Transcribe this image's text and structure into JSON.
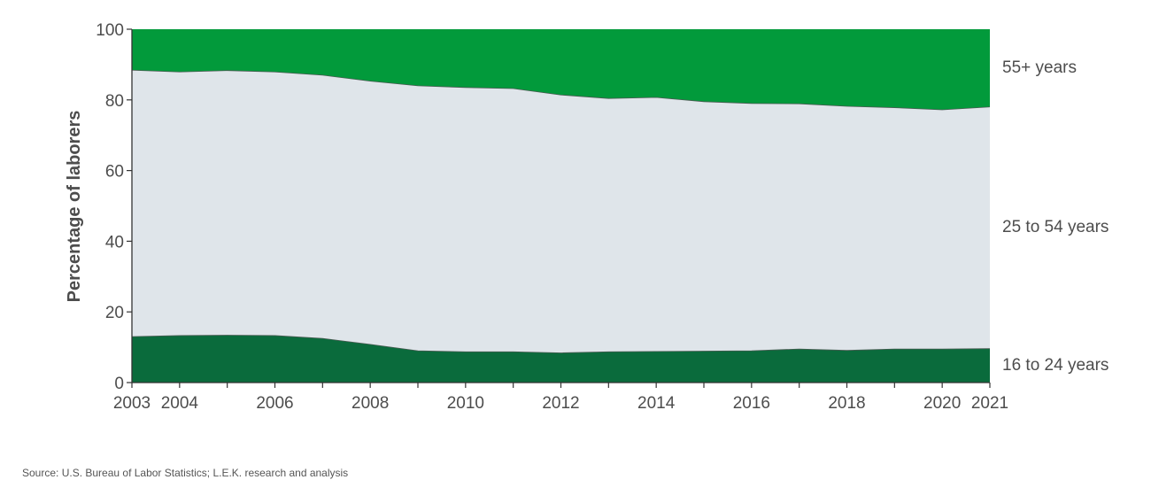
{
  "chart_data": {
    "type": "area",
    "stacked": true,
    "ylabel": "Percentage of laborers",
    "ylim": [
      0,
      100
    ],
    "yticks": [
      0,
      20,
      40,
      60,
      80,
      100
    ],
    "x": [
      2003,
      2004,
      2005,
      2006,
      2007,
      2008,
      2009,
      2010,
      2011,
      2012,
      2013,
      2014,
      2015,
      2016,
      2017,
      2018,
      2019,
      2020,
      2021
    ],
    "xtick_labels": [
      "2003",
      "2004",
      "2006",
      "2008",
      "2010",
      "2012",
      "2014",
      "2016",
      "2018",
      "2020",
      "2021"
    ],
    "series": [
      {
        "name": "16 to 24 years",
        "color": "#0a6b3c",
        "values": [
          13.0,
          13.3,
          13.4,
          13.3,
          12.5,
          10.8,
          9.0,
          8.7,
          8.7,
          8.4,
          8.7,
          8.8,
          8.9,
          9.0,
          9.5,
          9.1,
          9.5,
          9.5,
          9.6
        ]
      },
      {
        "name": "25 to 54 years",
        "color": "#dfe5ea",
        "values": [
          75.4,
          74.6,
          74.9,
          74.6,
          74.5,
          74.5,
          75.0,
          74.8,
          74.5,
          73.0,
          71.7,
          71.9,
          70.6,
          70.0,
          69.4,
          69.1,
          68.3,
          67.7,
          68.4
        ]
      },
      {
        "name": "55+ years",
        "color": "#029a3b",
        "values": [
          11.6,
          12.1,
          11.7,
          12.1,
          13.0,
          14.7,
          16.0,
          16.5,
          16.8,
          18.6,
          19.6,
          19.3,
          20.5,
          21.0,
          21.1,
          21.8,
          22.2,
          22.8,
          22.0
        ]
      }
    ],
    "grid": false,
    "legend": "right-inline"
  },
  "source": "Source: U.S. Bureau of Labor Statistics; L.E.K. research and analysis"
}
